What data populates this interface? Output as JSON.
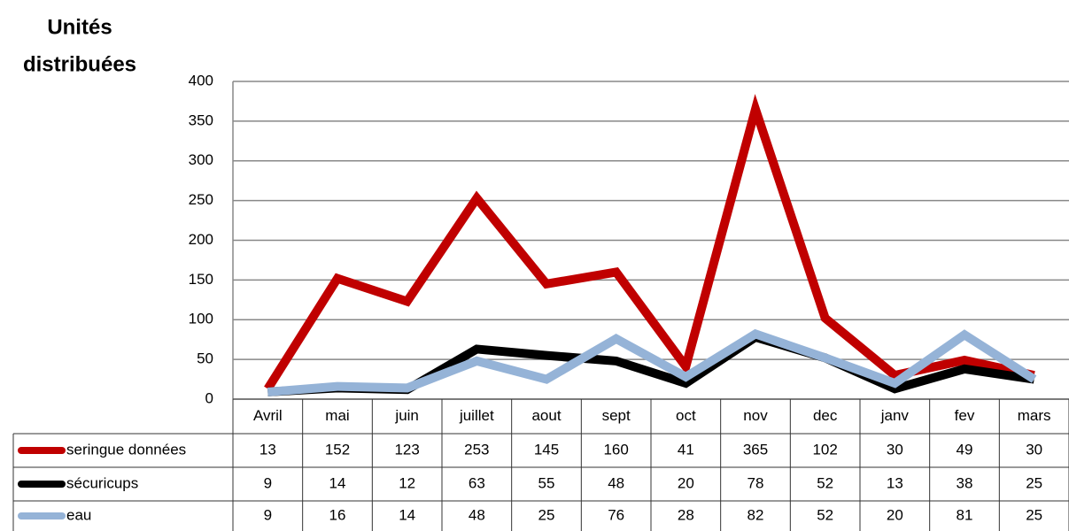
{
  "chart_data": {
    "type": "line",
    "ylabel": [
      "Unités",
      "distribuées"
    ],
    "categories": [
      "Avril",
      "mai",
      "juin",
      "juillet",
      "aout",
      "sept",
      "oct",
      "nov",
      "dec",
      "janv",
      "fev",
      "mars"
    ],
    "series": [
      {
        "name": "seringue données",
        "color": "#c00000",
        "values": [
          13,
          152,
          123,
          253,
          145,
          160,
          41,
          365,
          102,
          30,
          49,
          30
        ]
      },
      {
        "name": "sécuricups",
        "color": "#000000",
        "values": [
          9,
          14,
          12,
          63,
          55,
          48,
          20,
          78,
          52,
          13,
          38,
          25
        ]
      },
      {
        "name": "eau",
        "color": "#95b3d7",
        "values": [
          9,
          16,
          14,
          48,
          25,
          76,
          28,
          82,
          52,
          20,
          81,
          25
        ]
      }
    ],
    "ylim": [
      0,
      400
    ],
    "yticks": [
      0,
      50,
      100,
      150,
      200,
      250,
      300,
      350,
      400
    ],
    "grid": true
  }
}
